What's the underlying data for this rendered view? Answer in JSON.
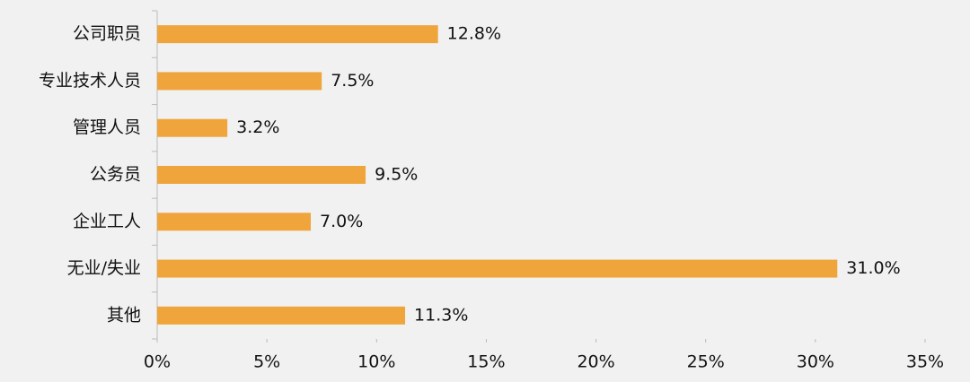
{
  "chart_data": {
    "type": "bar",
    "orientation": "horizontal",
    "categories": [
      "公司职员",
      "专业技术人员",
      "管理人员",
      "公务员",
      "企业工人",
      "无业/失业",
      "其他"
    ],
    "values": [
      12.8,
      7.5,
      3.2,
      9.5,
      7.0,
      31.0,
      11.3
    ],
    "value_labels": [
      "12.8%",
      "7.5%",
      "3.2%",
      "9.5%",
      "7.0%",
      "31.0%",
      "11.3%"
    ],
    "color": "#f0a53c",
    "xlim": [
      0,
      35
    ],
    "xticks": [
      {
        "value": 0,
        "label": "0%"
      },
      {
        "value": 5,
        "label": "5%"
      },
      {
        "value": 10,
        "label": "10%"
      },
      {
        "value": 15,
        "label": "15%"
      },
      {
        "value": 20,
        "label": "20%"
      },
      {
        "value": 25,
        "label": "25%"
      },
      {
        "value": 30,
        "label": "30%"
      },
      {
        "value": 35,
        "label": "35%"
      }
    ]
  }
}
